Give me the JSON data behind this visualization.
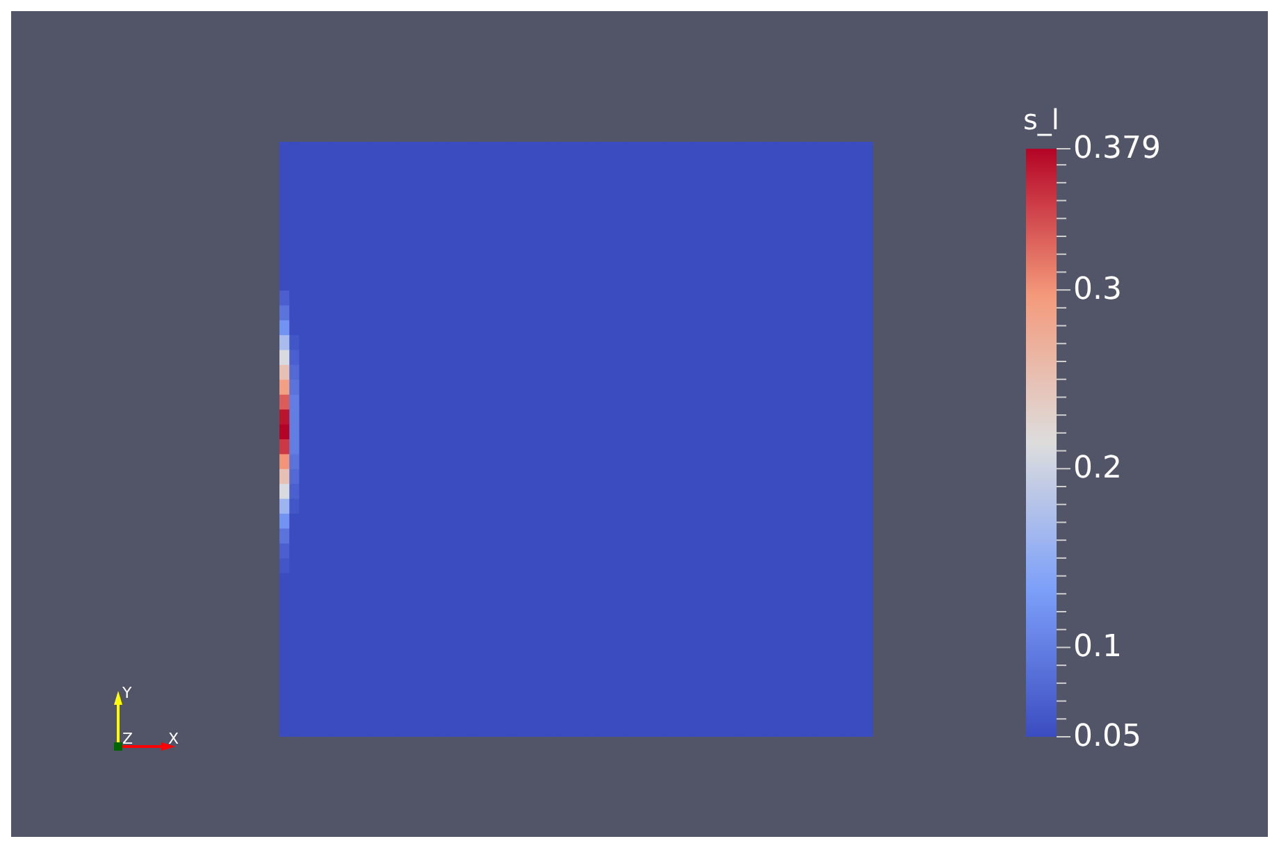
{
  "chart_data": {
    "type": "heatmap",
    "clabel": "s_l",
    "annotations": [
      "Y",
      "Z",
      "X"
    ],
    "categories": [
      null,
      null,
      null,
      null,
      null,
      null,
      null,
      null,
      null,
      null,
      null,
      null,
      null,
      null,
      null,
      null,
      null,
      null,
      null,
      null,
      null,
      null,
      null,
      null,
      null,
      null,
      null,
      null,
      null,
      null,
      null,
      null,
      null,
      null,
      null,
      null,
      null,
      null,
      null,
      null,
      null,
      null,
      null,
      null,
      null,
      null,
      null,
      null,
      null,
      null,
      null,
      null,
      null,
      null,
      null,
      null,
      null,
      null,
      null,
      null
    ],
    "y_categories": [
      null,
      null,
      null,
      null,
      null,
      null,
      null,
      null,
      null,
      null,
      null,
      null,
      null,
      null,
      null,
      null,
      null,
      null,
      null,
      null,
      null,
      null,
      null,
      null,
      null,
      null,
      null,
      null,
      null,
      null,
      null,
      null,
      null,
      null,
      null,
      null,
      null,
      null,
      null,
      null
    ],
    "clim": [
      0.05,
      0.379
    ],
    "cticks": [
      0.05,
      {
        "value": 0.06,
        "label": null
      },
      {
        "value": 0.07,
        "label": null
      },
      {
        "value": 0.08,
        "label": null
      },
      {
        "value": 0.09,
        "label": null
      },
      0.1,
      {
        "value": 0.11,
        "label": null
      },
      {
        "value": 0.12,
        "label": null
      },
      {
        "value": 0.13,
        "label": null
      },
      {
        "value": 0.14,
        "label": null
      },
      {
        "value": 0.15,
        "label": null
      },
      {
        "value": 0.16,
        "label": null
      },
      {
        "value": 0.17,
        "label": null
      },
      {
        "value": 0.18,
        "label": null
      },
      {
        "value": 0.19,
        "label": null
      },
      0.2,
      {
        "value": 0.21,
        "label": null
      },
      {
        "value": 0.22,
        "label": null
      },
      {
        "value": 0.23,
        "label": null
      },
      {
        "value": 0.24,
        "label": null
      },
      {
        "value": 0.25,
        "label": null
      },
      {
        "value": 0.26,
        "label": null
      },
      {
        "value": 0.27,
        "label": null
      },
      {
        "value": 0.28,
        "label": null
      },
      {
        "value": 0.29,
        "label": null
      },
      0.3,
      {
        "value": 0.31,
        "label": null
      },
      {
        "value": 0.32,
        "label": null
      },
      {
        "value": 0.33,
        "label": null
      },
      {
        "value": 0.34,
        "label": null
      },
      {
        "value": 0.35,
        "label": null
      },
      {
        "value": 0.36,
        "label": null
      },
      {
        "value": 0.37,
        "label": null
      },
      0.379
    ],
    "cells": [
      [
        0.05,
        0.05,
        0.05,
        0.05,
        0.05,
        0.05,
        0.05,
        0.05,
        0.05,
        0.05,
        0.05,
        0.05,
        0.05,
        0.05,
        0.05,
        0.05,
        0.05,
        0.05,
        0.05,
        0.05,
        0.05,
        0.05,
        0.05,
        0.05,
        0.05,
        0.05,
        0.05,
        0.05,
        0.05,
        0.05,
        0.05,
        0.05,
        0.05,
        0.05,
        0.05,
        0.05,
        0.05,
        0.05,
        0.05,
        0.05,
        0.05,
        0.05,
        0.05,
        0.05,
        0.05,
        0.05,
        0.05,
        0.05,
        0.05,
        0.05,
        0.05,
        0.05,
        0.05,
        0.05,
        0.05,
        0.05,
        0.05,
        0.05,
        0.05,
        0.05
      ],
      [
        0.05,
        0.05,
        0.05,
        0.05,
        0.05,
        0.05,
        0.05,
        0.05,
        0.05,
        0.05,
        0.05,
        0.05,
        0.05,
        0.05,
        0.05,
        0.05,
        0.05,
        0.05,
        0.05,
        0.05,
        0.05,
        0.05,
        0.05,
        0.05,
        0.05,
        0.05,
        0.05,
        0.05,
        0.05,
        0.05,
        0.05,
        0.05,
        0.05,
        0.05,
        0.05,
        0.05,
        0.05,
        0.05,
        0.05,
        0.05,
        0.05,
        0.05,
        0.05,
        0.05,
        0.05,
        0.05,
        0.05,
        0.05,
        0.05,
        0.05,
        0.05,
        0.05,
        0.05,
        0.05,
        0.05,
        0.05,
        0.05,
        0.05,
        0.05,
        0.05
      ],
      [
        0.05,
        0.05,
        0.05,
        0.05,
        0.05,
        0.05,
        0.05,
        0.05,
        0.05,
        0.05,
        0.05,
        0.05,
        0.05,
        0.05,
        0.05,
        0.05,
        0.05,
        0.05,
        0.05,
        0.05,
        0.05,
        0.05,
        0.05,
        0.05,
        0.05,
        0.05,
        0.05,
        0.05,
        0.05,
        0.05,
        0.05,
        0.05,
        0.05,
        0.05,
        0.05,
        0.05,
        0.05,
        0.05,
        0.05,
        0.05,
        0.05,
        0.05,
        0.05,
        0.05,
        0.05,
        0.05,
        0.05,
        0.05,
        0.05,
        0.05,
        0.05,
        0.05,
        0.05,
        0.05,
        0.05,
        0.05,
        0.05,
        0.05,
        0.05,
        0.05
      ],
      [
        0.05,
        0.05,
        0.05,
        0.05,
        0.05,
        0.05,
        0.05,
        0.05,
        0.05,
        0.05,
        0.05,
        0.05,
        0.05,
        0.05,
        0.05,
        0.05,
        0.05,
        0.05,
        0.05,
        0.05,
        0.05,
        0.05,
        0.05,
        0.05,
        0.05,
        0.05,
        0.05,
        0.05,
        0.05,
        0.05,
        0.05,
        0.05,
        0.05,
        0.05,
        0.05,
        0.05,
        0.05,
        0.05,
        0.05,
        0.05,
        0.05,
        0.05,
        0.05,
        0.05,
        0.05,
        0.05,
        0.05,
        0.05,
        0.05,
        0.05,
        0.05,
        0.05,
        0.05,
        0.05,
        0.05,
        0.05,
        0.05,
        0.05,
        0.05,
        0.05
      ],
      [
        0.05,
        0.05,
        0.05,
        0.05,
        0.05,
        0.05,
        0.05,
        0.05,
        0.05,
        0.05,
        0.05,
        0.05,
        0.05,
        0.05,
        0.05,
        0.05,
        0.05,
        0.05,
        0.05,
        0.05,
        0.05,
        0.05,
        0.05,
        0.05,
        0.05,
        0.05,
        0.05,
        0.05,
        0.05,
        0.05,
        0.05,
        0.05,
        0.05,
        0.05,
        0.05,
        0.05,
        0.05,
        0.05,
        0.05,
        0.05,
        0.05,
        0.05,
        0.05,
        0.05,
        0.05,
        0.05,
        0.05,
        0.05,
        0.05,
        0.05,
        0.05,
        0.05,
        0.05,
        0.05,
        0.05,
        0.05,
        0.05,
        0.05,
        0.05,
        0.05
      ],
      [
        0.05,
        0.05,
        0.05,
        0.05,
        0.05,
        0.05,
        0.05,
        0.05,
        0.05,
        0.05,
        0.05,
        0.05,
        0.05,
        0.05,
        0.05,
        0.05,
        0.05,
        0.05,
        0.05,
        0.05,
        0.05,
        0.05,
        0.05,
        0.05,
        0.05,
        0.05,
        0.05,
        0.05,
        0.05,
        0.05,
        0.05,
        0.05,
        0.05,
        0.05,
        0.05,
        0.05,
        0.05,
        0.05,
        0.05,
        0.05,
        0.05,
        0.05,
        0.05,
        0.05,
        0.05,
        0.05,
        0.05,
        0.05,
        0.05,
        0.05,
        0.05,
        0.05,
        0.05,
        0.05,
        0.05,
        0.05,
        0.05,
        0.05,
        0.05,
        0.05
      ],
      [
        0.05,
        0.05,
        0.05,
        0.05,
        0.05,
        0.05,
        0.05,
        0.05,
        0.05,
        0.05,
        0.05,
        0.05,
        0.05,
        0.05,
        0.05,
        0.05,
        0.05,
        0.05,
        0.05,
        0.05,
        0.05,
        0.05,
        0.05,
        0.05,
        0.05,
        0.05,
        0.05,
        0.05,
        0.05,
        0.05,
        0.05,
        0.05,
        0.05,
        0.05,
        0.05,
        0.05,
        0.05,
        0.05,
        0.05,
        0.05,
        0.05,
        0.05,
        0.05,
        0.05,
        0.05,
        0.05,
        0.05,
        0.05,
        0.05,
        0.05,
        0.05,
        0.05,
        0.05,
        0.05,
        0.05,
        0.05,
        0.05,
        0.05,
        0.05,
        0.05
      ],
      [
        0.05,
        0.05,
        0.05,
        0.05,
        0.05,
        0.05,
        0.05,
        0.05,
        0.05,
        0.05,
        0.05,
        0.05,
        0.05,
        0.05,
        0.05,
        0.05,
        0.05,
        0.05,
        0.05,
        0.05,
        0.05,
        0.05,
        0.05,
        0.05,
        0.05,
        0.05,
        0.05,
        0.05,
        0.05,
        0.05,
        0.05,
        0.05,
        0.05,
        0.05,
        0.05,
        0.05,
        0.05,
        0.05,
        0.05,
        0.05,
        0.05,
        0.05,
        0.05,
        0.05,
        0.05,
        0.05,
        0.05,
        0.05,
        0.05,
        0.05,
        0.05,
        0.05,
        0.05,
        0.05,
        0.05,
        0.05,
        0.05,
        0.05,
        0.05,
        0.05
      ],
      [
        0.05,
        0.05,
        0.05,
        0.05,
        0.05,
        0.05,
        0.05,
        0.05,
        0.05,
        0.05,
        0.05,
        0.05,
        0.05,
        0.05,
        0.05,
        0.05,
        0.05,
        0.05,
        0.05,
        0.05,
        0.05,
        0.05,
        0.05,
        0.05,
        0.05,
        0.05,
        0.05,
        0.05,
        0.05,
        0.05,
        0.05,
        0.05,
        0.05,
        0.05,
        0.05,
        0.05,
        0.05,
        0.05,
        0.05,
        0.05,
        0.05,
        0.05,
        0.05,
        0.05,
        0.05,
        0.05,
        0.05,
        0.05,
        0.05,
        0.05,
        0.05,
        0.05,
        0.05,
        0.05,
        0.05,
        0.05,
        0.05,
        0.05,
        0.05,
        0.05
      ],
      [
        0.05,
        0.05,
        0.05,
        0.05,
        0.05,
        0.05,
        0.05,
        0.05,
        0.05,
        0.05,
        0.05,
        0.05,
        0.05,
        0.05,
        0.05,
        0.05,
        0.05,
        0.05,
        0.05,
        0.05,
        0.05,
        0.05,
        0.05,
        0.05,
        0.05,
        0.05,
        0.05,
        0.05,
        0.05,
        0.05,
        0.05,
        0.05,
        0.05,
        0.05,
        0.05,
        0.05,
        0.05,
        0.05,
        0.05,
        0.05,
        0.05,
        0.05,
        0.05,
        0.05,
        0.05,
        0.05,
        0.05,
        0.05,
        0.05,
        0.05,
        0.05,
        0.05,
        0.05,
        0.05,
        0.05,
        0.05,
        0.05,
        0.05,
        0.05,
        0.05
      ],
      [
        0.07,
        0.05,
        0.05,
        0.05,
        0.05,
        0.05,
        0.05,
        0.05,
        0.05,
        0.05,
        0.05,
        0.05,
        0.05,
        0.05,
        0.05,
        0.05,
        0.05,
        0.05,
        0.05,
        0.05,
        0.05,
        0.05,
        0.05,
        0.05,
        0.05,
        0.05,
        0.05,
        0.05,
        0.05,
        0.05,
        0.05,
        0.05,
        0.05,
        0.05,
        0.05,
        0.05,
        0.05,
        0.05,
        0.05,
        0.05,
        0.05,
        0.05,
        0.05,
        0.05,
        0.05,
        0.05,
        0.05,
        0.05,
        0.05,
        0.05,
        0.05,
        0.05,
        0.05,
        0.05,
        0.05,
        0.05,
        0.05,
        0.05,
        0.05,
        0.05
      ],
      [
        0.09,
        0.05,
        0.05,
        0.05,
        0.05,
        0.05,
        0.05,
        0.05,
        0.05,
        0.05,
        0.05,
        0.05,
        0.05,
        0.05,
        0.05,
        0.05,
        0.05,
        0.05,
        0.05,
        0.05,
        0.05,
        0.05,
        0.05,
        0.05,
        0.05,
        0.05,
        0.05,
        0.05,
        0.05,
        0.05,
        0.05,
        0.05,
        0.05,
        0.05,
        0.05,
        0.05,
        0.05,
        0.05,
        0.05,
        0.05,
        0.05,
        0.05,
        0.05,
        0.05,
        0.05,
        0.05,
        0.05,
        0.05,
        0.05,
        0.05,
        0.05,
        0.05,
        0.05,
        0.05,
        0.05,
        0.05,
        0.05,
        0.05,
        0.05,
        0.05
      ],
      [
        0.12,
        0.05,
        0.05,
        0.05,
        0.05,
        0.05,
        0.05,
        0.05,
        0.05,
        0.05,
        0.05,
        0.05,
        0.05,
        0.05,
        0.05,
        0.05,
        0.05,
        0.05,
        0.05,
        0.05,
        0.05,
        0.05,
        0.05,
        0.05,
        0.05,
        0.05,
        0.05,
        0.05,
        0.05,
        0.05,
        0.05,
        0.05,
        0.05,
        0.05,
        0.05,
        0.05,
        0.05,
        0.05,
        0.05,
        0.05,
        0.05,
        0.05,
        0.05,
        0.05,
        0.05,
        0.05,
        0.05,
        0.05,
        0.05,
        0.05,
        0.05,
        0.05,
        0.05,
        0.05,
        0.05,
        0.05,
        0.05,
        0.05,
        0.05,
        0.05
      ],
      [
        0.17,
        0.06,
        0.05,
        0.05,
        0.05,
        0.05,
        0.05,
        0.05,
        0.05,
        0.05,
        0.05,
        0.05,
        0.05,
        0.05,
        0.05,
        0.05,
        0.05,
        0.05,
        0.05,
        0.05,
        0.05,
        0.05,
        0.05,
        0.05,
        0.05,
        0.05,
        0.05,
        0.05,
        0.05,
        0.05,
        0.05,
        0.05,
        0.05,
        0.05,
        0.05,
        0.05,
        0.05,
        0.05,
        0.05,
        0.05,
        0.05,
        0.05,
        0.05,
        0.05,
        0.05,
        0.05,
        0.05,
        0.05,
        0.05,
        0.05,
        0.05,
        0.05,
        0.05,
        0.05,
        0.05,
        0.05,
        0.05,
        0.05,
        0.05,
        0.05
      ],
      [
        0.21,
        0.07,
        0.05,
        0.05,
        0.05,
        0.05,
        0.05,
        0.05,
        0.05,
        0.05,
        0.05,
        0.05,
        0.05,
        0.05,
        0.05,
        0.05,
        0.05,
        0.05,
        0.05,
        0.05,
        0.05,
        0.05,
        0.05,
        0.05,
        0.05,
        0.05,
        0.05,
        0.05,
        0.05,
        0.05,
        0.05,
        0.05,
        0.05,
        0.05,
        0.05,
        0.05,
        0.05,
        0.05,
        0.05,
        0.05,
        0.05,
        0.05,
        0.05,
        0.05,
        0.05,
        0.05,
        0.05,
        0.05,
        0.05,
        0.05,
        0.05,
        0.05,
        0.05,
        0.05,
        0.05,
        0.05,
        0.05,
        0.05,
        0.05,
        0.05
      ],
      [
        0.25,
        0.08,
        0.05,
        0.05,
        0.05,
        0.05,
        0.05,
        0.05,
        0.05,
        0.05,
        0.05,
        0.05,
        0.05,
        0.05,
        0.05,
        0.05,
        0.05,
        0.05,
        0.05,
        0.05,
        0.05,
        0.05,
        0.05,
        0.05,
        0.05,
        0.05,
        0.05,
        0.05,
        0.05,
        0.05,
        0.05,
        0.05,
        0.05,
        0.05,
        0.05,
        0.05,
        0.05,
        0.05,
        0.05,
        0.05,
        0.05,
        0.05,
        0.05,
        0.05,
        0.05,
        0.05,
        0.05,
        0.05,
        0.05,
        0.05,
        0.05,
        0.05,
        0.05,
        0.05,
        0.05,
        0.05,
        0.05,
        0.05,
        0.05,
        0.05
      ],
      [
        0.29,
        0.09,
        0.05,
        0.05,
        0.05,
        0.05,
        0.05,
        0.05,
        0.05,
        0.05,
        0.05,
        0.05,
        0.05,
        0.05,
        0.05,
        0.05,
        0.05,
        0.05,
        0.05,
        0.05,
        0.05,
        0.05,
        0.05,
        0.05,
        0.05,
        0.05,
        0.05,
        0.05,
        0.05,
        0.05,
        0.05,
        0.05,
        0.05,
        0.05,
        0.05,
        0.05,
        0.05,
        0.05,
        0.05,
        0.05,
        0.05,
        0.05,
        0.05,
        0.05,
        0.05,
        0.05,
        0.05,
        0.05,
        0.05,
        0.05,
        0.05,
        0.05,
        0.05,
        0.05,
        0.05,
        0.05,
        0.05,
        0.05,
        0.05,
        0.05
      ],
      [
        0.33,
        0.1,
        0.05,
        0.05,
        0.05,
        0.05,
        0.05,
        0.05,
        0.05,
        0.05,
        0.05,
        0.05,
        0.05,
        0.05,
        0.05,
        0.05,
        0.05,
        0.05,
        0.05,
        0.05,
        0.05,
        0.05,
        0.05,
        0.05,
        0.05,
        0.05,
        0.05,
        0.05,
        0.05,
        0.05,
        0.05,
        0.05,
        0.05,
        0.05,
        0.05,
        0.05,
        0.05,
        0.05,
        0.05,
        0.05,
        0.05,
        0.05,
        0.05,
        0.05,
        0.05,
        0.05,
        0.05,
        0.05,
        0.05,
        0.05,
        0.05,
        0.05,
        0.05,
        0.05,
        0.05,
        0.05,
        0.05,
        0.05,
        0.05,
        0.05
      ],
      [
        0.37,
        0.1,
        0.05,
        0.05,
        0.05,
        0.05,
        0.05,
        0.05,
        0.05,
        0.05,
        0.05,
        0.05,
        0.05,
        0.05,
        0.05,
        0.05,
        0.05,
        0.05,
        0.05,
        0.05,
        0.05,
        0.05,
        0.05,
        0.05,
        0.05,
        0.05,
        0.05,
        0.05,
        0.05,
        0.05,
        0.05,
        0.05,
        0.05,
        0.05,
        0.05,
        0.05,
        0.05,
        0.05,
        0.05,
        0.05,
        0.05,
        0.05,
        0.05,
        0.05,
        0.05,
        0.05,
        0.05,
        0.05,
        0.05,
        0.05,
        0.05,
        0.05,
        0.05,
        0.05,
        0.05,
        0.05,
        0.05,
        0.05,
        0.05,
        0.05
      ],
      [
        0.379,
        0.1,
        0.05,
        0.05,
        0.05,
        0.05,
        0.05,
        0.05,
        0.05,
        0.05,
        0.05,
        0.05,
        0.05,
        0.05,
        0.05,
        0.05,
        0.05,
        0.05,
        0.05,
        0.05,
        0.05,
        0.05,
        0.05,
        0.05,
        0.05,
        0.05,
        0.05,
        0.05,
        0.05,
        0.05,
        0.05,
        0.05,
        0.05,
        0.05,
        0.05,
        0.05,
        0.05,
        0.05,
        0.05,
        0.05,
        0.05,
        0.05,
        0.05,
        0.05,
        0.05,
        0.05,
        0.05,
        0.05,
        0.05,
        0.05,
        0.05,
        0.05,
        0.05,
        0.05,
        0.05,
        0.05,
        0.05,
        0.05,
        0.05,
        0.05
      ],
      [
        0.35,
        0.1,
        0.05,
        0.05,
        0.05,
        0.05,
        0.05,
        0.05,
        0.05,
        0.05,
        0.05,
        0.05,
        0.05,
        0.05,
        0.05,
        0.05,
        0.05,
        0.05,
        0.05,
        0.05,
        0.05,
        0.05,
        0.05,
        0.05,
        0.05,
        0.05,
        0.05,
        0.05,
        0.05,
        0.05,
        0.05,
        0.05,
        0.05,
        0.05,
        0.05,
        0.05,
        0.05,
        0.05,
        0.05,
        0.05,
        0.05,
        0.05,
        0.05,
        0.05,
        0.05,
        0.05,
        0.05,
        0.05,
        0.05,
        0.05,
        0.05,
        0.05,
        0.05,
        0.05,
        0.05,
        0.05,
        0.05,
        0.05,
        0.05,
        0.05
      ],
      [
        0.3,
        0.09,
        0.05,
        0.05,
        0.05,
        0.05,
        0.05,
        0.05,
        0.05,
        0.05,
        0.05,
        0.05,
        0.05,
        0.05,
        0.05,
        0.05,
        0.05,
        0.05,
        0.05,
        0.05,
        0.05,
        0.05,
        0.05,
        0.05,
        0.05,
        0.05,
        0.05,
        0.05,
        0.05,
        0.05,
        0.05,
        0.05,
        0.05,
        0.05,
        0.05,
        0.05,
        0.05,
        0.05,
        0.05,
        0.05,
        0.05,
        0.05,
        0.05,
        0.05,
        0.05,
        0.05,
        0.05,
        0.05,
        0.05,
        0.05,
        0.05,
        0.05,
        0.05,
        0.05,
        0.05,
        0.05,
        0.05,
        0.05,
        0.05,
        0.05
      ],
      [
        0.25,
        0.08,
        0.05,
        0.05,
        0.05,
        0.05,
        0.05,
        0.05,
        0.05,
        0.05,
        0.05,
        0.05,
        0.05,
        0.05,
        0.05,
        0.05,
        0.05,
        0.05,
        0.05,
        0.05,
        0.05,
        0.05,
        0.05,
        0.05,
        0.05,
        0.05,
        0.05,
        0.05,
        0.05,
        0.05,
        0.05,
        0.05,
        0.05,
        0.05,
        0.05,
        0.05,
        0.05,
        0.05,
        0.05,
        0.05,
        0.05,
        0.05,
        0.05,
        0.05,
        0.05,
        0.05,
        0.05,
        0.05,
        0.05,
        0.05,
        0.05,
        0.05,
        0.05,
        0.05,
        0.05,
        0.05,
        0.05,
        0.05,
        0.05,
        0.05
      ],
      [
        0.21,
        0.07,
        0.05,
        0.05,
        0.05,
        0.05,
        0.05,
        0.05,
        0.05,
        0.05,
        0.05,
        0.05,
        0.05,
        0.05,
        0.05,
        0.05,
        0.05,
        0.05,
        0.05,
        0.05,
        0.05,
        0.05,
        0.05,
        0.05,
        0.05,
        0.05,
        0.05,
        0.05,
        0.05,
        0.05,
        0.05,
        0.05,
        0.05,
        0.05,
        0.05,
        0.05,
        0.05,
        0.05,
        0.05,
        0.05,
        0.05,
        0.05,
        0.05,
        0.05,
        0.05,
        0.05,
        0.05,
        0.05,
        0.05,
        0.05,
        0.05,
        0.05,
        0.05,
        0.05,
        0.05,
        0.05,
        0.05,
        0.05,
        0.05,
        0.05
      ],
      [
        0.16,
        0.06,
        0.05,
        0.05,
        0.05,
        0.05,
        0.05,
        0.05,
        0.05,
        0.05,
        0.05,
        0.05,
        0.05,
        0.05,
        0.05,
        0.05,
        0.05,
        0.05,
        0.05,
        0.05,
        0.05,
        0.05,
        0.05,
        0.05,
        0.05,
        0.05,
        0.05,
        0.05,
        0.05,
        0.05,
        0.05,
        0.05,
        0.05,
        0.05,
        0.05,
        0.05,
        0.05,
        0.05,
        0.05,
        0.05,
        0.05,
        0.05,
        0.05,
        0.05,
        0.05,
        0.05,
        0.05,
        0.05,
        0.05,
        0.05,
        0.05,
        0.05,
        0.05,
        0.05,
        0.05,
        0.05,
        0.05,
        0.05,
        0.05,
        0.05
      ],
      [
        0.12,
        0.05,
        0.05,
        0.05,
        0.05,
        0.05,
        0.05,
        0.05,
        0.05,
        0.05,
        0.05,
        0.05,
        0.05,
        0.05,
        0.05,
        0.05,
        0.05,
        0.05,
        0.05,
        0.05,
        0.05,
        0.05,
        0.05,
        0.05,
        0.05,
        0.05,
        0.05,
        0.05,
        0.05,
        0.05,
        0.05,
        0.05,
        0.05,
        0.05,
        0.05,
        0.05,
        0.05,
        0.05,
        0.05,
        0.05,
        0.05,
        0.05,
        0.05,
        0.05,
        0.05,
        0.05,
        0.05,
        0.05,
        0.05,
        0.05,
        0.05,
        0.05,
        0.05,
        0.05,
        0.05,
        0.05,
        0.05,
        0.05,
        0.05,
        0.05
      ],
      [
        0.09,
        0.05,
        0.05,
        0.05,
        0.05,
        0.05,
        0.05,
        0.05,
        0.05,
        0.05,
        0.05,
        0.05,
        0.05,
        0.05,
        0.05,
        0.05,
        0.05,
        0.05,
        0.05,
        0.05,
        0.05,
        0.05,
        0.05,
        0.05,
        0.05,
        0.05,
        0.05,
        0.05,
        0.05,
        0.05,
        0.05,
        0.05,
        0.05,
        0.05,
        0.05,
        0.05,
        0.05,
        0.05,
        0.05,
        0.05,
        0.05,
        0.05,
        0.05,
        0.05,
        0.05,
        0.05,
        0.05,
        0.05,
        0.05,
        0.05,
        0.05,
        0.05,
        0.05,
        0.05,
        0.05,
        0.05,
        0.05,
        0.05,
        0.05,
        0.05
      ],
      [
        0.07,
        0.05,
        0.05,
        0.05,
        0.05,
        0.05,
        0.05,
        0.05,
        0.05,
        0.05,
        0.05,
        0.05,
        0.05,
        0.05,
        0.05,
        0.05,
        0.05,
        0.05,
        0.05,
        0.05,
        0.05,
        0.05,
        0.05,
        0.05,
        0.05,
        0.05,
        0.05,
        0.05,
        0.05,
        0.05,
        0.05,
        0.05,
        0.05,
        0.05,
        0.05,
        0.05,
        0.05,
        0.05,
        0.05,
        0.05,
        0.05,
        0.05,
        0.05,
        0.05,
        0.05,
        0.05,
        0.05,
        0.05,
        0.05,
        0.05,
        0.05,
        0.05,
        0.05,
        0.05,
        0.05,
        0.05,
        0.05,
        0.05,
        0.05,
        0.05
      ],
      [
        0.06,
        0.05,
        0.05,
        0.05,
        0.05,
        0.05,
        0.05,
        0.05,
        0.05,
        0.05,
        0.05,
        0.05,
        0.05,
        0.05,
        0.05,
        0.05,
        0.05,
        0.05,
        0.05,
        0.05,
        0.05,
        0.05,
        0.05,
        0.05,
        0.05,
        0.05,
        0.05,
        0.05,
        0.05,
        0.05,
        0.05,
        0.05,
        0.05,
        0.05,
        0.05,
        0.05,
        0.05,
        0.05,
        0.05,
        0.05,
        0.05,
        0.05,
        0.05,
        0.05,
        0.05,
        0.05,
        0.05,
        0.05,
        0.05,
        0.05,
        0.05,
        0.05,
        0.05,
        0.05,
        0.05,
        0.05,
        0.05,
        0.05,
        0.05,
        0.05
      ],
      [
        0.05,
        0.05,
        0.05,
        0.05,
        0.05,
        0.05,
        0.05,
        0.05,
        0.05,
        0.05,
        0.05,
        0.05,
        0.05,
        0.05,
        0.05,
        0.05,
        0.05,
        0.05,
        0.05,
        0.05,
        0.05,
        0.05,
        0.05,
        0.05,
        0.05,
        0.05,
        0.05,
        0.05,
        0.05,
        0.05,
        0.05,
        0.05,
        0.05,
        0.05,
        0.05,
        0.05,
        0.05,
        0.05,
        0.05,
        0.05,
        0.05,
        0.05,
        0.05,
        0.05,
        0.05,
        0.05,
        0.05,
        0.05,
        0.05,
        0.05,
        0.05,
        0.05,
        0.05,
        0.05,
        0.05,
        0.05,
        0.05,
        0.05,
        0.05,
        0.05
      ],
      [
        0.05,
        0.05,
        0.05,
        0.05,
        0.05,
        0.05,
        0.05,
        0.05,
        0.05,
        0.05,
        0.05,
        0.05,
        0.05,
        0.05,
        0.05,
        0.05,
        0.05,
        0.05,
        0.05,
        0.05,
        0.05,
        0.05,
        0.05,
        0.05,
        0.05,
        0.05,
        0.05,
        0.05,
        0.05,
        0.05,
        0.05,
        0.05,
        0.05,
        0.05,
        0.05,
        0.05,
        0.05,
        0.05,
        0.05,
        0.05,
        0.05,
        0.05,
        0.05,
        0.05,
        0.05,
        0.05,
        0.05,
        0.05,
        0.05,
        0.05,
        0.05,
        0.05,
        0.05,
        0.05,
        0.05,
        0.05,
        0.05,
        0.05,
        0.05,
        0.05
      ],
      [
        0.05,
        0.05,
        0.05,
        0.05,
        0.05,
        0.05,
        0.05,
        0.05,
        0.05,
        0.05,
        0.05,
        0.05,
        0.05,
        0.05,
        0.05,
        0.05,
        0.05,
        0.05,
        0.05,
        0.05,
        0.05,
        0.05,
        0.05,
        0.05,
        0.05,
        0.05,
        0.05,
        0.05,
        0.05,
        0.05,
        0.05,
        0.05,
        0.05,
        0.05,
        0.05,
        0.05,
        0.05,
        0.05,
        0.05,
        0.05,
        0.05,
        0.05,
        0.05,
        0.05,
        0.05,
        0.05,
        0.05,
        0.05,
        0.05,
        0.05,
        0.05,
        0.05,
        0.05,
        0.05,
        0.05,
        0.05,
        0.05,
        0.05,
        0.05,
        0.05
      ],
      [
        0.05,
        0.05,
        0.05,
        0.05,
        0.05,
        0.05,
        0.05,
        0.05,
        0.05,
        0.05,
        0.05,
        0.05,
        0.05,
        0.05,
        0.05,
        0.05,
        0.05,
        0.05,
        0.05,
        0.05,
        0.05,
        0.05,
        0.05,
        0.05,
        0.05,
        0.05,
        0.05,
        0.05,
        0.05,
        0.05,
        0.05,
        0.05,
        0.05,
        0.05,
        0.05,
        0.05,
        0.05,
        0.05,
        0.05,
        0.05,
        0.05,
        0.05,
        0.05,
        0.05,
        0.05,
        0.05,
        0.05,
        0.05,
        0.05,
        0.05,
        0.05,
        0.05,
        0.05,
        0.05,
        0.05,
        0.05,
        0.05,
        0.05,
        0.05,
        0.05
      ],
      [
        0.05,
        0.05,
        0.05,
        0.05,
        0.05,
        0.05,
        0.05,
        0.05,
        0.05,
        0.05,
        0.05,
        0.05,
        0.05,
        0.05,
        0.05,
        0.05,
        0.05,
        0.05,
        0.05,
        0.05,
        0.05,
        0.05,
        0.05,
        0.05,
        0.05,
        0.05,
        0.05,
        0.05,
        0.05,
        0.05,
        0.05,
        0.05,
        0.05,
        0.05,
        0.05,
        0.05,
        0.05,
        0.05,
        0.05,
        0.05,
        0.05,
        0.05,
        0.05,
        0.05,
        0.05,
        0.05,
        0.05,
        0.05,
        0.05,
        0.05,
        0.05,
        0.05,
        0.05,
        0.05,
        0.05,
        0.05,
        0.05,
        0.05,
        0.05,
        0.05
      ],
      [
        0.05,
        0.05,
        0.05,
        0.05,
        0.05,
        0.05,
        0.05,
        0.05,
        0.05,
        0.05,
        0.05,
        0.05,
        0.05,
        0.05,
        0.05,
        0.05,
        0.05,
        0.05,
        0.05,
        0.05,
        0.05,
        0.05,
        0.05,
        0.05,
        0.05,
        0.05,
        0.05,
        0.05,
        0.05,
        0.05,
        0.05,
        0.05,
        0.05,
        0.05,
        0.05,
        0.05,
        0.05,
        0.05,
        0.05,
        0.05,
        0.05,
        0.05,
        0.05,
        0.05,
        0.05,
        0.05,
        0.05,
        0.05,
        0.05,
        0.05,
        0.05,
        0.05,
        0.05,
        0.05,
        0.05,
        0.05,
        0.05,
        0.05,
        0.05,
        0.05
      ],
      [
        0.05,
        0.05,
        0.05,
        0.05,
        0.05,
        0.05,
        0.05,
        0.05,
        0.05,
        0.05,
        0.05,
        0.05,
        0.05,
        0.05,
        0.05,
        0.05,
        0.05,
        0.05,
        0.05,
        0.05,
        0.05,
        0.05,
        0.05,
        0.05,
        0.05,
        0.05,
        0.05,
        0.05,
        0.05,
        0.05,
        0.05,
        0.05,
        0.05,
        0.05,
        0.05,
        0.05,
        0.05,
        0.05,
        0.05,
        0.05,
        0.05,
        0.05,
        0.05,
        0.05,
        0.05,
        0.05,
        0.05,
        0.05,
        0.05,
        0.05,
        0.05,
        0.05,
        0.05,
        0.05,
        0.05,
        0.05,
        0.05,
        0.05,
        0.05,
        0.05
      ],
      [
        0.05,
        0.05,
        0.05,
        0.05,
        0.05,
        0.05,
        0.05,
        0.05,
        0.05,
        0.05,
        0.05,
        0.05,
        0.05,
        0.05,
        0.05,
        0.05,
        0.05,
        0.05,
        0.05,
        0.05,
        0.05,
        0.05,
        0.05,
        0.05,
        0.05,
        0.05,
        0.05,
        0.05,
        0.05,
        0.05,
        0.05,
        0.05,
        0.05,
        0.05,
        0.05,
        0.05,
        0.05,
        0.05,
        0.05,
        0.05,
        0.05,
        0.05,
        0.05,
        0.05,
        0.05,
        0.05,
        0.05,
        0.05,
        0.05,
        0.05,
        0.05,
        0.05,
        0.05,
        0.05,
        0.05,
        0.05,
        0.05,
        0.05,
        0.05,
        0.05
      ],
      [
        0.05,
        0.05,
        0.05,
        0.05,
        0.05,
        0.05,
        0.05,
        0.05,
        0.05,
        0.05,
        0.05,
        0.05,
        0.05,
        0.05,
        0.05,
        0.05,
        0.05,
        0.05,
        0.05,
        0.05,
        0.05,
        0.05,
        0.05,
        0.05,
        0.05,
        0.05,
        0.05,
        0.05,
        0.05,
        0.05,
        0.05,
        0.05,
        0.05,
        0.05,
        0.05,
        0.05,
        0.05,
        0.05,
        0.05,
        0.05,
        0.05,
        0.05,
        0.05,
        0.05,
        0.05,
        0.05,
        0.05,
        0.05,
        0.05,
        0.05,
        0.05,
        0.05,
        0.05,
        0.05,
        0.05,
        0.05,
        0.05,
        0.05,
        0.05,
        0.05
      ],
      [
        0.05,
        0.05,
        0.05,
        0.05,
        0.05,
        0.05,
        0.05,
        0.05,
        0.05,
        0.05,
        0.05,
        0.05,
        0.05,
        0.05,
        0.05,
        0.05,
        0.05,
        0.05,
        0.05,
        0.05,
        0.05,
        0.05,
        0.05,
        0.05,
        0.05,
        0.05,
        0.05,
        0.05,
        0.05,
        0.05,
        0.05,
        0.05,
        0.05,
        0.05,
        0.05,
        0.05,
        0.05,
        0.05,
        0.05,
        0.05,
        0.05,
        0.05,
        0.05,
        0.05,
        0.05,
        0.05,
        0.05,
        0.05,
        0.05,
        0.05,
        0.05,
        0.05,
        0.05,
        0.05,
        0.05,
        0.05,
        0.05,
        0.05,
        0.05,
        0.05
      ],
      [
        0.05,
        0.05,
        0.05,
        0.05,
        0.05,
        0.05,
        0.05,
        0.05,
        0.05,
        0.05,
        0.05,
        0.05,
        0.05,
        0.05,
        0.05,
        0.05,
        0.05,
        0.05,
        0.05,
        0.05,
        0.05,
        0.05,
        0.05,
        0.05,
        0.05,
        0.05,
        0.05,
        0.05,
        0.05,
        0.05,
        0.05,
        0.05,
        0.05,
        0.05,
        0.05,
        0.05,
        0.05,
        0.05,
        0.05,
        0.05,
        0.05,
        0.05,
        0.05,
        0.05,
        0.05,
        0.05,
        0.05,
        0.05,
        0.05,
        0.05,
        0.05,
        0.05,
        0.05,
        0.05,
        0.05,
        0.05,
        0.05,
        0.05,
        0.05,
        0.05
      ]
    ]
  }
}
